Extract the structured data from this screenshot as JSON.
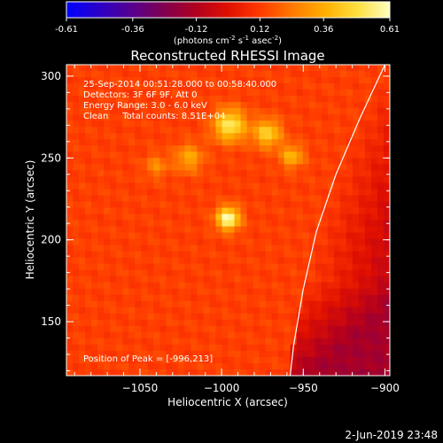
{
  "colors": {
    "background": "#000000",
    "foreground": "#ffffff",
    "colormap": [
      "#0000ff",
      "#2a00c8",
      "#550090",
      "#800050",
      "#b00020",
      "#e01000",
      "#ff3a00",
      "#ff7a00",
      "#ffb000",
      "#ffe040",
      "#ffffc0"
    ]
  },
  "chart_data": {
    "type": "heatmap",
    "title": "Reconstructed RHESSI Image",
    "colorbar": {
      "ticks": [
        "-0.61",
        "-0.36",
        "-0.12",
        "0.12",
        "0.36",
        "0.61"
      ],
      "range": [
        -0.61,
        0.61
      ],
      "unit_label": "(photons cm",
      "unit_sup1": "-2",
      "unit_mid": " s",
      "unit_sup2": "-1",
      "unit_end": " asec",
      "unit_sup3": "-2",
      "unit_close": ")"
    },
    "xlabel": "Heliocentric X (arcsec)",
    "ylabel": "Heliocentric Y (arcsec)",
    "xlim": [
      -1095,
      -897
    ],
    "ylim": [
      117,
      307
    ],
    "xticks": [
      {
        "value": -1050,
        "label": "−1050"
      },
      {
        "value": -1000,
        "label": "−1000"
      },
      {
        "value": -950,
        "label": "−950"
      },
      {
        "value": -900,
        "label": "−900"
      }
    ],
    "yticks": [
      {
        "value": 150,
        "label": "150"
      },
      {
        "value": 200,
        "label": "200"
      },
      {
        "value": 250,
        "label": "250"
      },
      {
        "value": 300,
        "label": "300"
      }
    ],
    "info": [
      "25-Sep-2014 00:51:28.000 to 00:58:40.000",
      "Detectors: 3F 6F 9F, Att 0",
      "Energy Range: 3.0 - 6.0 keV",
      "Clean     Total counts: 8.51E+04"
    ],
    "peak_label": "Position of Peak = [-996,213]",
    "peak": {
      "x": -996,
      "y": 213,
      "value": 0.61
    },
    "sources": [
      {
        "x": -996,
        "y": 213,
        "amp": 0.61,
        "sigma": 5
      },
      {
        "x": -995,
        "y": 270,
        "amp": 0.52,
        "sigma": 7
      },
      {
        "x": -972,
        "y": 265,
        "amp": 0.45,
        "sigma": 6
      },
      {
        "x": -957,
        "y": 251,
        "amp": 0.38,
        "sigma": 5
      },
      {
        "x": -1020,
        "y": 250,
        "amp": 0.35,
        "sigma": 6
      },
      {
        "x": -1040,
        "y": 245,
        "amp": 0.28,
        "sigma": 5
      }
    ],
    "limb": [
      {
        "x": -900,
        "y": 307
      },
      {
        "x": -915,
        "y": 275
      },
      {
        "x": -930,
        "y": 240
      },
      {
        "x": -942,
        "y": 205
      },
      {
        "x": -950,
        "y": 170
      },
      {
        "x": -956,
        "y": 135
      },
      {
        "x": -958,
        "y": 117
      }
    ]
  },
  "footer": {
    "timestamp": "2-Jun-2019 23:48"
  }
}
